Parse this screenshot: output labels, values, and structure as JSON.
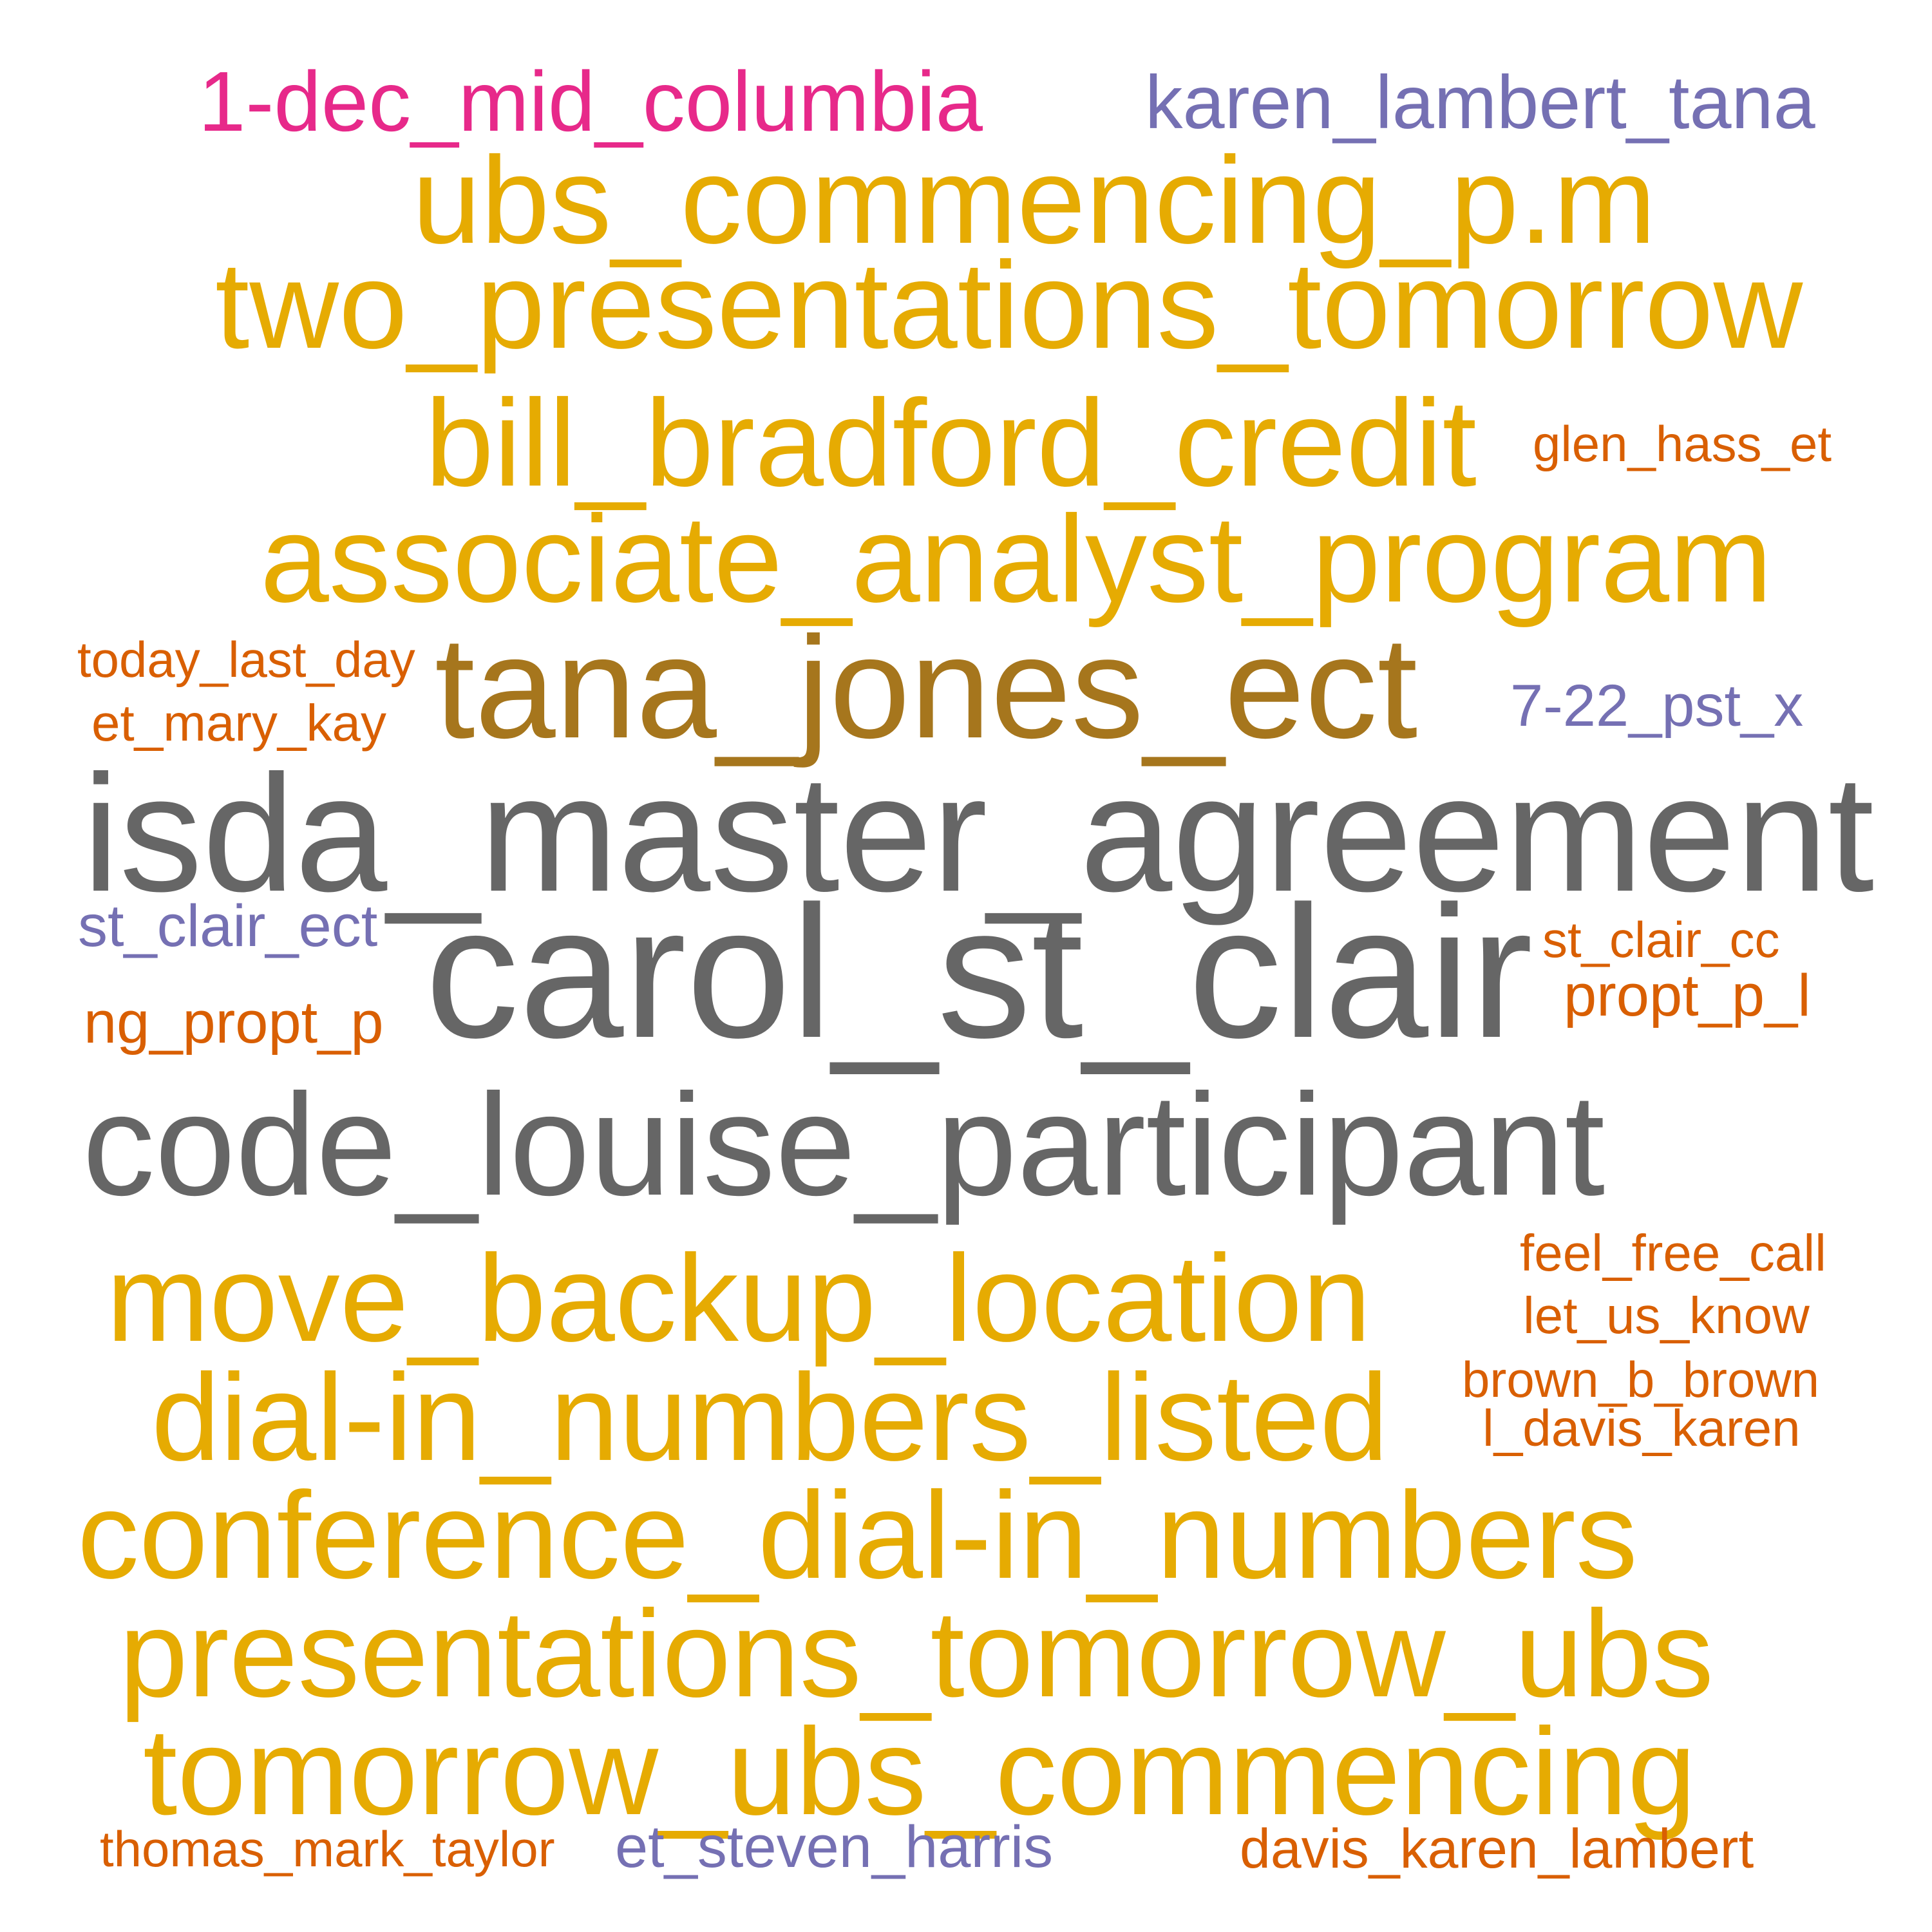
{
  "words": {
    "w01": {
      "text": "1-dec_mid_columbia",
      "color": "#e7298a"
    },
    "w02": {
      "text": "karen_lambert_tana",
      "color": "#7570b3"
    },
    "w03": {
      "text": "ubs_commencing_p.m",
      "color": "#e6ab02"
    },
    "w04": {
      "text": "two_presentations_tomorrow",
      "color": "#e6ab02"
    },
    "w05": {
      "text": "bill_bradford_credit",
      "color": "#e6ab02"
    },
    "w06": {
      "text": "glen_hass_et",
      "color": "#d95f02"
    },
    "w07": {
      "text": "associate_analyst_program",
      "color": "#e6ab02"
    },
    "w08": {
      "text": "today_last_day",
      "color": "#d95f02"
    },
    "w09": {
      "text": "tana_jones_ect",
      "color": "#a6761d"
    },
    "w10": {
      "text": "7-22_pst_x",
      "color": "#7570b3"
    },
    "w11": {
      "text": "et_mary_kay",
      "color": "#d95f02"
    },
    "w12": {
      "text": "isda_master_agreement",
      "color": "#666666"
    },
    "w13": {
      "text": "st_clair_ect",
      "color": "#7570b3"
    },
    "w14": {
      "text": "carol_st_clair",
      "color": "#666666"
    },
    "w15": {
      "text": "st_clair_cc",
      "color": "#d95f02"
    },
    "w16": {
      "text": "propt_p_l",
      "color": "#d95f02"
    },
    "w17": {
      "text": "ng_propt_p",
      "color": "#d95f02"
    },
    "w18": {
      "text": "code_louise_participant",
      "color": "#666666"
    },
    "w19": {
      "text": "feel_free_call",
      "color": "#d95f02"
    },
    "w20": {
      "text": "move_backup_location",
      "color": "#e6ab02"
    },
    "w21": {
      "text": "let_us_know",
      "color": "#d95f02"
    },
    "w22": {
      "text": "dial-in_numbers_listed",
      "color": "#e6ab02"
    },
    "w23": {
      "text": "brown_b_brown",
      "color": "#d95f02"
    },
    "w24": {
      "text": "l_davis_karen",
      "color": "#d95f02"
    },
    "w25": {
      "text": "conference_dial-in_numbers",
      "color": "#e6ab02"
    },
    "w26": {
      "text": "presentations_tomorrow_ubs",
      "color": "#e6ab02"
    },
    "w27": {
      "text": "tomorrow_ubs_commencing",
      "color": "#e6ab02"
    },
    "w28": {
      "text": "thomas_mark_taylor",
      "color": "#d95f02"
    },
    "w29": {
      "text": "et_steven_harris",
      "color": "#7570b3"
    },
    "w30": {
      "text": "davis_karen_lambert",
      "color": "#d95f02"
    }
  }
}
